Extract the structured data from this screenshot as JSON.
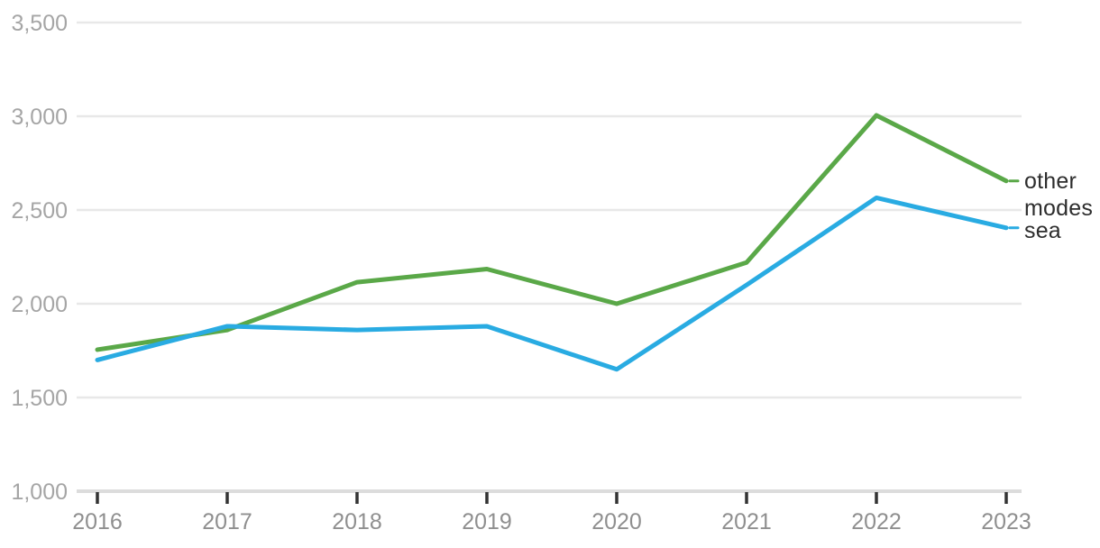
{
  "chart_data": {
    "type": "line",
    "x": [
      2016,
      2017,
      2018,
      2019,
      2020,
      2021,
      2022,
      2023
    ],
    "series": [
      {
        "name": "other modes",
        "color": "#5aa848",
        "values": [
          1755,
          1860,
          2115,
          2185,
          2000,
          2220,
          3005,
          2655
        ]
      },
      {
        "name": "sea",
        "color": "#29abe2",
        "values": [
          1700,
          1880,
          1860,
          1880,
          1650,
          2100,
          2565,
          2405
        ]
      }
    ],
    "title": "",
    "xlabel": "",
    "ylabel": "",
    "ylim": [
      1000,
      3500
    ],
    "ytick_interval": 500,
    "ytick_labels": [
      "1,000",
      "1,500",
      "2,000",
      "2,500",
      "3,000",
      "3,500"
    ],
    "xtick_labels": [
      "2016",
      "2017",
      "2018",
      "2019",
      "2020",
      "2021",
      "2022",
      "2023"
    ],
    "grid": "horizontal",
    "legend_position": "end-of-line-right"
  },
  "colors": {
    "gridline": "#e8e8e8",
    "axis_line": "#dcdcdc",
    "tick_mark": "#333333",
    "y_label": "#a5a5a5",
    "x_label": "#8f8f8f",
    "legend_text": "#2d2d2d",
    "background": "#ffffff"
  }
}
